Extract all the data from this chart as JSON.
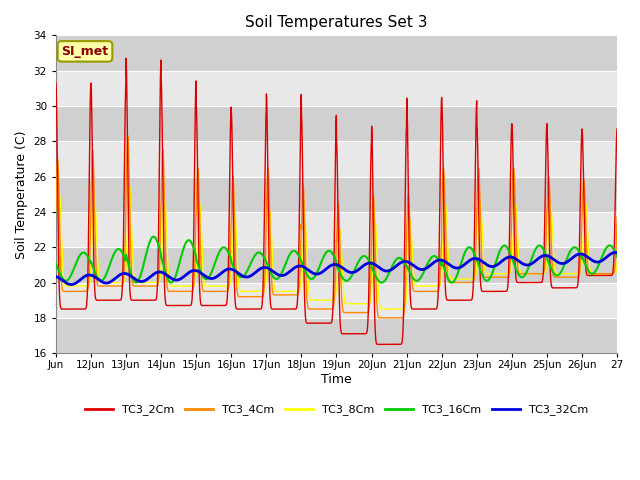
{
  "title": "Soil Temperatures Set 3",
  "xlabel": "Time",
  "ylabel": "Soil Temperature (C)",
  "ylim": [
    16,
    34
  ],
  "yticks": [
    16,
    18,
    20,
    22,
    24,
    26,
    28,
    30,
    32,
    34
  ],
  "xlim_start": 0,
  "xlim_end": 16,
  "xtick_labels": [
    "Jun",
    "12Jun",
    "13Jun",
    "14Jun",
    "15Jun",
    "16Jun",
    "17Jun",
    "18Jun",
    "19Jun",
    "20Jun",
    "21Jun",
    "22Jun",
    "23Jun",
    "24Jun",
    "25Jun",
    "26Jun",
    "27"
  ],
  "annotation_text": "SI_met",
  "series_colors": [
    "#dd0000",
    "#ff8800",
    "#ffff00",
    "#00cc00",
    "#0000dd"
  ],
  "series_names": [
    "TC3_2Cm",
    "TC3_4Cm",
    "TC3_8Cm",
    "TC3_16Cm",
    "TC3_32Cm"
  ],
  "legend_line_colors": [
    "#dd0000",
    "#ff8800",
    "#ffff00",
    "#00cc00",
    "#0000dd"
  ],
  "bg_light": "#e8e8e8",
  "bg_dark": "#d0d0d0",
  "grid_color": "#ffffff",
  "band_edges": [
    16,
    18,
    20,
    22,
    24,
    26,
    28,
    30,
    32,
    34
  ]
}
